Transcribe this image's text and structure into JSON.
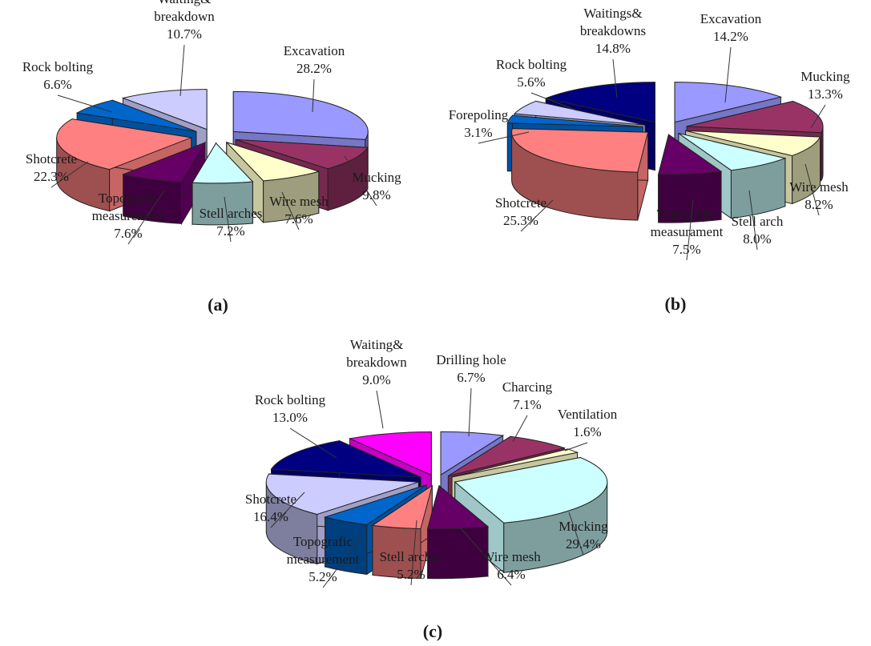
{
  "chart_data": [
    {
      "type": "pie",
      "caption": "(a)",
      "slices": [
        {
          "label": [
            "Excavation"
          ],
          "value": 28.2,
          "value_label": "28.2%",
          "color": "#9999ff"
        },
        {
          "label": [
            "Mucking"
          ],
          "value": 9.8,
          "value_label": "9.8%",
          "color": "#993366"
        },
        {
          "label": [
            "Wire mesh"
          ],
          "value": 7.6,
          "value_label": "7.6%",
          "color": "#ffffcc"
        },
        {
          "label": [
            "Stell arches"
          ],
          "value": 7.2,
          "value_label": "7.2%",
          "color": "#ccffff"
        },
        {
          "label": [
            "Topografic",
            "measurement"
          ],
          "value": 7.6,
          "value_label": "7.6%",
          "color": "#660066"
        },
        {
          "label": [
            "Shotcrete"
          ],
          "value": 22.3,
          "value_label": "22.3%",
          "color": "#ff8080"
        },
        {
          "label": [
            "Rock bolting"
          ],
          "value": 6.6,
          "value_label": "6.6%",
          "color": "#0066cc"
        },
        {
          "label": [
            "Waiting&",
            "breakdown"
          ],
          "value": 10.7,
          "value_label": "10.7%",
          "color": "#ccccff"
        }
      ]
    },
    {
      "type": "pie",
      "caption": "(b)",
      "slices": [
        {
          "label": [
            "Excavation"
          ],
          "value": 14.2,
          "value_label": "14.2%",
          "color": "#9999ff"
        },
        {
          "label": [
            "Mucking"
          ],
          "value": 13.3,
          "value_label": "13.3%",
          "color": "#993366"
        },
        {
          "label": [
            "Wire mesh"
          ],
          "value": 8.2,
          "value_label": "8.2%",
          "color": "#ffffcc"
        },
        {
          "label": [
            "Stell arch"
          ],
          "value": 8.0,
          "value_label": "8.0%",
          "color": "#ccffff"
        },
        {
          "label": [
            "Topografic",
            "measurament"
          ],
          "value": 7.5,
          "value_label": "7.5%",
          "color": "#660066"
        },
        {
          "label": [
            "Shotcrete"
          ],
          "value": 25.3,
          "value_label": "25.3%",
          "color": "#ff8080"
        },
        {
          "label": [
            "Forepoling"
          ],
          "value": 3.1,
          "value_label": "3.1%",
          "color": "#0066cc"
        },
        {
          "label": [
            "Rock bolting"
          ],
          "value": 5.6,
          "value_label": "5.6%",
          "color": "#ccccff"
        },
        {
          "label": [
            "Waitings&",
            "breakdowns"
          ],
          "value": 14.8,
          "value_label": "14.8%",
          "color": "#000080"
        }
      ]
    },
    {
      "type": "pie",
      "caption": "(c)",
      "slices": [
        {
          "label": [
            "Drilling hole"
          ],
          "value": 6.7,
          "value_label": "6.7%",
          "color": "#9999ff"
        },
        {
          "label": [
            "Charcing"
          ],
          "value": 7.1,
          "value_label": "7.1%",
          "color": "#993366"
        },
        {
          "label": [
            "Ventilation"
          ],
          "value": 1.6,
          "value_label": "1.6%",
          "color": "#ffffcc"
        },
        {
          "label": [
            "Mucking"
          ],
          "value": 29.4,
          "value_label": "29.4%",
          "color": "#ccffff"
        },
        {
          "label": [
            "Wire mesh"
          ],
          "value": 6.4,
          "value_label": "6.4%",
          "color": "#660066"
        },
        {
          "label": [
            "Stell arches"
          ],
          "value": 5.2,
          "value_label": "5.2%",
          "color": "#ff8080"
        },
        {
          "label": [
            "Topografic",
            "measurement"
          ],
          "value": 5.2,
          "value_label": "5.2%",
          "color": "#0066cc"
        },
        {
          "label": [
            "Shotcrete"
          ],
          "value": 16.4,
          "value_label": "16.4%",
          "color": "#ccccff"
        },
        {
          "label": [
            "Rock bolting"
          ],
          "value": 13.0,
          "value_label": "13.0%",
          "color": "#000080"
        },
        {
          "label": [
            "Waiting&",
            "breakdown"
          ],
          "value": 9.0,
          "value_label": "9.0%",
          "color": "#ff00ff"
        }
      ]
    }
  ]
}
